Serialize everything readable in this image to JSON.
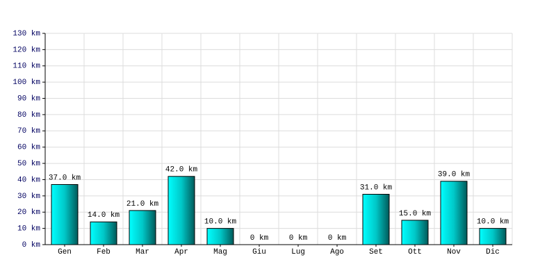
{
  "chart_data": {
    "type": "bar",
    "categories": [
      "Gen",
      "Feb",
      "Mar",
      "Apr",
      "Mag",
      "Giu",
      "Lug",
      "Ago",
      "Set",
      "Ott",
      "Nov",
      "Dic"
    ],
    "values": [
      37,
      14,
      21,
      42,
      10,
      0,
      0,
      0,
      31,
      15,
      39,
      10
    ],
    "value_labels": [
      "37.0 km",
      "14.0 km",
      "21.0 km",
      "42.0 km",
      "10.0 km",
      "0 km",
      "0 km",
      "0 km",
      "31.0 km",
      "15.0 km",
      "39.0 km",
      "10.0 km"
    ],
    "color": "#00c8c8",
    "ylim": [
      0,
      130
    ],
    "yticks": [
      {
        "value": 0,
        "label": "0 km"
      },
      {
        "value": 10,
        "label": "10 km"
      },
      {
        "value": 20,
        "label": "20 km"
      },
      {
        "value": 30,
        "label": "30 km"
      },
      {
        "value": 40,
        "label": "40 km"
      },
      {
        "value": 50,
        "label": "50 km"
      },
      {
        "value": 60,
        "label": "60 km"
      },
      {
        "value": 70,
        "label": "70 km"
      },
      {
        "value": 80,
        "label": "80 km"
      },
      {
        "value": 90,
        "label": "90 km"
      },
      {
        "value": 100,
        "label": "100 km"
      },
      {
        "value": 110,
        "label": "110 km"
      },
      {
        "value": 120,
        "label": "120 km"
      },
      {
        "value": 130,
        "label": "130 km"
      }
    ],
    "grid": true
  }
}
